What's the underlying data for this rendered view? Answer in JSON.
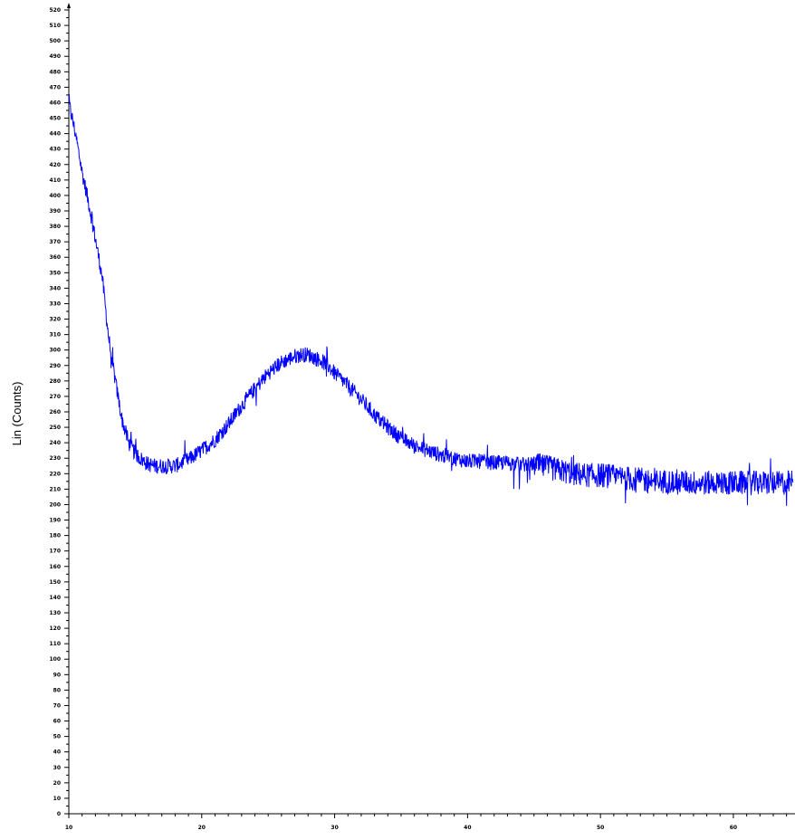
{
  "chart_data": {
    "type": "line",
    "title": "",
    "xlabel": "",
    "ylabel": "Lin (Counts)",
    "xlim": [
      10,
      64.5
    ],
    "ylim": [
      0,
      520
    ],
    "x_major_ticks": [
      10,
      20,
      30,
      40,
      50,
      60
    ],
    "x_tick_labels": [
      "10",
      "20",
      "30",
      "40",
      "50",
      "60"
    ],
    "y_major_ticks": [
      0,
      10,
      20,
      30,
      40,
      50,
      60,
      70,
      80,
      90,
      100,
      110,
      120,
      130,
      140,
      150,
      160,
      170,
      180,
      190,
      200,
      210,
      220,
      230,
      240,
      250,
      260,
      270,
      280,
      290,
      300,
      310,
      320,
      330,
      340,
      350,
      360,
      370,
      380,
      390,
      400,
      410,
      420,
      430,
      440,
      450,
      460,
      470,
      480,
      490,
      500,
      510,
      520
    ],
    "y_tick_labels": [
      "0",
      "10",
      "20",
      "30",
      "40",
      "50",
      "60",
      "70",
      "80",
      "90",
      "100",
      "110",
      "120",
      "130",
      "140",
      "150",
      "160",
      "170",
      "180",
      "190",
      "200",
      "210",
      "220",
      "230",
      "240",
      "250",
      "260",
      "270",
      "280",
      "290",
      "300",
      "310",
      "320",
      "330",
      "340",
      "350",
      "360",
      "370",
      "380",
      "390",
      "400",
      "410",
      "420",
      "430",
      "440",
      "450",
      "460",
      "470",
      "480",
      "490",
      "500",
      "510",
      "520"
    ],
    "grid": false,
    "series": [
      {
        "color": "#0000ff",
        "x": [
          10,
          10.5,
          11,
          11.5,
          12,
          12.5,
          13,
          13.5,
          14,
          14.5,
          15,
          15.5,
          16,
          16.5,
          17,
          17.5,
          18,
          18.5,
          19,
          19.5,
          20,
          21,
          22,
          23,
          24,
          25,
          26,
          27,
          27.5,
          28,
          28.5,
          29,
          29.5,
          30,
          31,
          32,
          33,
          34,
          35,
          36,
          37,
          38,
          39,
          40,
          41,
          42,
          43,
          44,
          45,
          46,
          47,
          48,
          49,
          50,
          51,
          52,
          53,
          54,
          55,
          56,
          57,
          58,
          59,
          60,
          61,
          62,
          63,
          64,
          64.5
        ],
        "y": [
          460,
          440,
          415,
          395,
          372,
          348,
          308,
          280,
          255,
          240,
          233,
          229,
          226,
          225,
          225,
          225,
          225,
          227,
          229,
          232,
          235,
          242,
          252,
          264,
          275,
          285,
          292,
          296,
          297,
          297,
          295,
          293,
          290,
          285,
          277,
          268,
          258,
          250,
          243,
          238,
          235,
          232,
          230,
          228,
          228,
          227,
          227,
          226,
          226,
          224,
          222,
          220,
          219,
          219,
          218,
          217,
          216,
          215,
          215,
          215,
          214,
          214,
          214,
          214,
          214,
          214,
          214,
          214,
          215
        ]
      }
    ]
  }
}
